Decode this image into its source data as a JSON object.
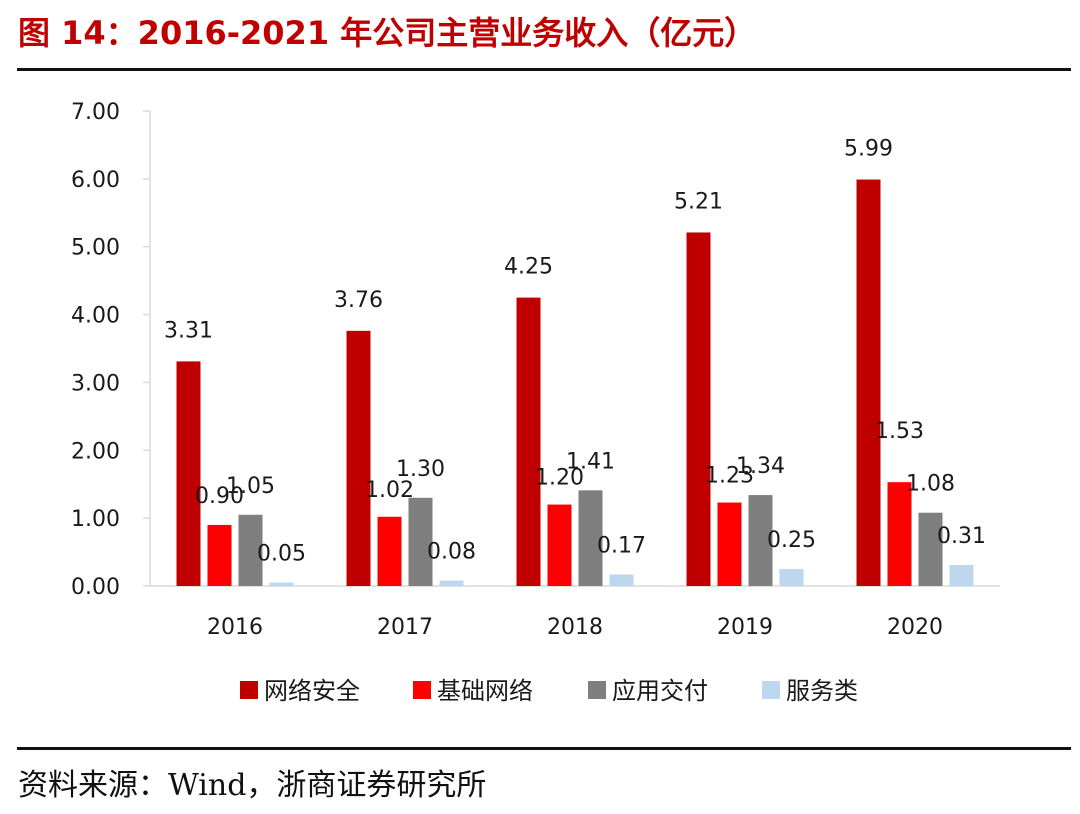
{
  "title": "图 14：2016-2021 年公司主营业务收入（亿元）",
  "source": "资料来源：Wind，浙商证券研究所",
  "chart_data": {
    "type": "bar",
    "title": "图 14：2016-2021 年公司主营业务收入（亿元）",
    "xlabel": "",
    "ylabel": "",
    "categories": [
      "2016",
      "2017",
      "2018",
      "2019",
      "2020"
    ],
    "ylim": [
      0,
      7
    ],
    "yticks": [
      "0.00",
      "1.00",
      "2.00",
      "3.00",
      "4.00",
      "5.00",
      "6.00",
      "7.00"
    ],
    "grid": false,
    "legend_position": "bottom",
    "series": [
      {
        "name": "网络安全",
        "color": "#c00000",
        "values": [
          3.31,
          3.76,
          4.25,
          5.21,
          5.99
        ],
        "labels": [
          "3.31",
          "3.76",
          "4.25",
          "5.21",
          "5.99"
        ]
      },
      {
        "name": "基础网络",
        "color": "#ff0000",
        "values": [
          0.9,
          1.02,
          1.2,
          1.23,
          1.53
        ],
        "labels": [
          "0.90",
          "1.02",
          "1.20",
          "1.23",
          "1.53"
        ]
      },
      {
        "name": "应用交付",
        "color": "#7f7f7f",
        "values": [
          1.05,
          1.3,
          1.41,
          1.34,
          1.08
        ],
        "labels": [
          "1.05",
          "1.30",
          "1.41",
          "1.34",
          "1.08"
        ]
      },
      {
        "name": "服务类",
        "color": "#bdd7ee",
        "values": [
          0.05,
          0.08,
          0.17,
          0.25,
          0.31
        ],
        "labels": [
          "0.05",
          "0.08",
          "0.17",
          "0.25",
          "0.31"
        ]
      }
    ]
  }
}
